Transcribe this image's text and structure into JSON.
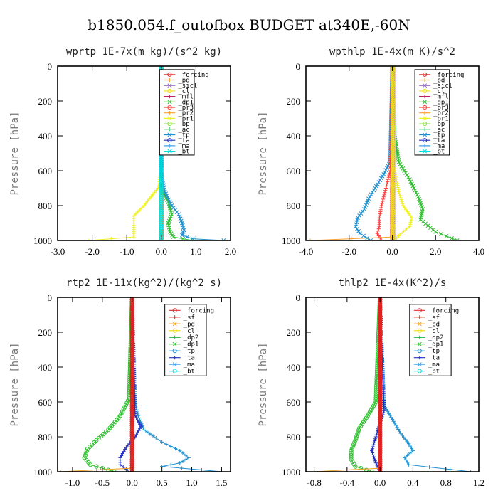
{
  "suptitle": "b1850.054.f_outofbox  BUDGET at340E,-60N",
  "colors": {
    "_forcing": "#e03030",
    "_sf": "#e02020",
    "_pd": "#f0a020",
    "_sicl": "#9a70c0",
    "_cl": "#f0e020",
    "_mfl": "#c02060",
    "_dp1": "#30c030",
    "_dp2": "#20b040",
    "_pr3": "#ff4040",
    "_pr2": "#ffa030",
    "_pr1": "#f0f020",
    "_bp": "#90e040",
    "_ac": "#40d080",
    "_tp": "#2090d0",
    "_ta": "#2030c0",
    "_ma": "#40a0f0",
    "_bt": "#00e0e0"
  },
  "chart_data": [
    {
      "type": "line",
      "title": "wprtp  1E-7x(m kg)/(s^2 kg)",
      "ylabel": "Pressure [hPa]",
      "xlim": [
        -3.0,
        2.0
      ],
      "ylim": [
        1000,
        0
      ],
      "xticks": [
        -3.0,
        -2.0,
        -1.0,
        0.0,
        1.0,
        2.0
      ],
      "xtick_labels": [
        "-3.0",
        "-2.0",
        "-1.0",
        "0.0",
        "1.0",
        "2.0"
      ],
      "yticks": [
        0,
        200,
        400,
        600,
        800,
        1000
      ],
      "legend": [
        "_forcing",
        "_pd",
        "_sicl",
        "_cl",
        "_mfl",
        "_dp1",
        "_pr3",
        "_pr2",
        "_pr1",
        "_bp",
        "_ac",
        "_tp",
        "_ta",
        "_ma",
        "_bt"
      ],
      "legend_frame": [
        0.59,
        0.02,
        0.79,
        0.51
      ],
      "series": [
        {
          "name": "_forcing",
          "marker": "o",
          "p": [
            0,
            1000
          ],
          "x": [
            0,
            0
          ]
        },
        {
          "name": "_pd",
          "marker": "+",
          "p": [
            0,
            1000
          ],
          "x": [
            0,
            0
          ]
        },
        {
          "name": "_pr1",
          "marker": "+",
          "p": [
            0,
            600,
            700,
            800,
            860,
            900,
            950,
            980,
            1000
          ],
          "x": [
            0,
            0,
            -0.1,
            -0.5,
            -0.8,
            -0.8,
            -0.8,
            -0.8,
            -2.1
          ]
        },
        {
          "name": "_dp1",
          "marker": "x",
          "p": [
            0,
            700,
            780,
            850,
            900,
            950,
            980,
            1000
          ],
          "x": [
            0,
            0,
            0.2,
            0.3,
            0.2,
            0.25,
            0.35,
            0.9
          ]
        },
        {
          "name": "_tp",
          "marker": "x",
          "p": [
            0,
            620,
            720,
            800,
            850,
            900,
            940,
            970,
            990,
            1000
          ],
          "x": [
            0,
            0,
            0.1,
            0.3,
            0.5,
            0.6,
            0.65,
            0.6,
            0.9,
            1.8
          ]
        },
        {
          "name": "_bt",
          "marker": "o",
          "p": [
            0,
            1000
          ],
          "x": [
            0,
            0
          ]
        }
      ]
    },
    {
      "type": "line",
      "title": "wpthlp  1E-4x(m K)/s^2",
      "ylabel": "Pressure [hPa]",
      "xlim": [
        -4.0,
        4.0
      ],
      "ylim": [
        1000,
        0
      ],
      "xticks": [
        -4.0,
        -2.0,
        0.0,
        2.0,
        4.0
      ],
      "xtick_labels": [
        "-4.0",
        "-2.0",
        "0.0",
        "2.0",
        "4.0"
      ],
      "yticks": [
        0,
        200,
        400,
        600,
        800,
        1000
      ],
      "legend": [
        "_forcing",
        "_pd",
        "_sicl",
        "_cl",
        "_mfl",
        "_dp1",
        "_pr3",
        "_pr2",
        "_pr1",
        "_bp",
        "_ac",
        "_tp",
        "_ta",
        "_ma",
        "_bt"
      ],
      "legend_frame": [
        0.63,
        0.02,
        0.83,
        0.51
      ],
      "series": [
        {
          "name": "_forcing",
          "marker": "o",
          "p": [
            0,
            1000
          ],
          "x": [
            0,
            0
          ]
        },
        {
          "name": "_dp1",
          "marker": "x",
          "p": [
            0,
            400,
            550,
            650,
            750,
            820,
            880,
            950,
            1000
          ],
          "x": [
            0,
            0.1,
            0.3,
            0.8,
            1.2,
            1.4,
            1.3,
            2.0,
            3.0
          ]
        },
        {
          "name": "_tp",
          "marker": "x",
          "p": [
            0,
            550,
            620,
            700,
            760,
            820,
            870,
            920,
            960,
            1000
          ],
          "x": [
            0,
            -0.1,
            -0.4,
            -0.8,
            -1.1,
            -1.3,
            -1.6,
            -1.7,
            -1.5,
            -1.0
          ]
        },
        {
          "name": "_pr1",
          "marker": "+",
          "p": [
            0,
            600,
            720,
            800,
            870,
            920,
            960,
            1000
          ],
          "x": [
            0,
            0.1,
            0.3,
            0.5,
            0.9,
            0.8,
            0.4,
            0.1
          ]
        },
        {
          "name": "_pr3",
          "marker": "+",
          "p": [
            0,
            600,
            700,
            800,
            870,
            920,
            960,
            1000
          ],
          "x": [
            0,
            -0.1,
            -0.3,
            -0.5,
            -0.6,
            -0.6,
            -0.7,
            -0.5
          ]
        },
        {
          "name": "_pr2",
          "marker": "+",
          "p": [
            0,
            980,
            1000
          ],
          "x": [
            0,
            0,
            -3.8
          ]
        },
        {
          "name": "_sicl",
          "marker": "+",
          "p": [
            0,
            1000
          ],
          "x": [
            0.1,
            0.1
          ]
        },
        {
          "name": "_cl",
          "marker": "o",
          "p": [
            0,
            1000
          ],
          "x": [
            0.05,
            0.05
          ]
        }
      ]
    },
    {
      "type": "line",
      "title": "rtp2  1E-11x(kg^2)/(kg^2 s)",
      "ylabel": "Pressure [hPa]",
      "xlim": [
        -1.25,
        1.65
      ],
      "ylim": [
        1000,
        0
      ],
      "xticks": [
        -1.0,
        -0.5,
        0.0,
        0.5,
        1.0,
        1.5
      ],
      "xtick_labels": [
        "-1.0",
        "-0.5",
        "0.0",
        "0.5",
        "1.0",
        "1.5"
      ],
      "yticks": [
        0,
        200,
        400,
        600,
        800,
        1000
      ],
      "legend": [
        "_forcing",
        "_sf",
        "_pd",
        "_cl",
        "_dp2",
        "_dp1",
        "_tp",
        "_ta",
        "_ma",
        "_bt"
      ],
      "legend_frame": [
        0.62,
        0.04,
        0.86,
        0.45
      ],
      "series": [
        {
          "name": "_dp1",
          "marker": "o",
          "p": [
            0,
            580,
            680,
            760,
            820,
            870,
            920,
            960,
            980,
            1000
          ],
          "x": [
            0,
            -0.05,
            -0.2,
            -0.4,
            -0.6,
            -0.75,
            -0.8,
            -0.7,
            -0.5,
            -0.3
          ]
        },
        {
          "name": "_tp",
          "marker": "+",
          "p": [
            0,
            600,
            680,
            760,
            830,
            880,
            920,
            950,
            970,
            1000
          ],
          "x": [
            0,
            0.05,
            0.1,
            0.2,
            0.5,
            0.8,
            0.95,
            0.8,
            0.5,
            1.5
          ]
        },
        {
          "name": "_ta",
          "marker": "+",
          "p": [
            0,
            680,
            740,
            800,
            860,
            920,
            960,
            1000
          ],
          "x": [
            0,
            0.05,
            0.15,
            0.05,
            -0.1,
            -0.2,
            -0.2,
            -0.05
          ]
        },
        {
          "name": "_pd",
          "marker": "+",
          "p": [
            0,
            980,
            1000
          ],
          "x": [
            0,
            0,
            -1.2
          ]
        },
        {
          "name": "_forcing",
          "marker": "o",
          "p": [
            0,
            1000
          ],
          "x": [
            0,
            0
          ]
        },
        {
          "name": "_sf",
          "marker": "v",
          "p": [
            0,
            1000
          ],
          "x": [
            0,
            0
          ]
        }
      ]
    },
    {
      "type": "line",
      "title": "thlp2  1E-4x(K^2)/s",
      "ylabel": "Pressure [hPa]",
      "xlim": [
        -0.9,
        1.2
      ],
      "ylim": [
        1000,
        0
      ],
      "xticks": [
        -0.8,
        -0.4,
        0.0,
        0.4,
        0.8,
        1.2
      ],
      "xtick_labels": [
        "-0.8",
        "-0.4",
        "0.0",
        "0.4",
        "0.8",
        "1.2"
      ],
      "yticks": [
        0,
        200,
        400,
        600,
        800,
        1000
      ],
      "legend": [
        "_forcing",
        "_sf",
        "_pd",
        "_cl",
        "_dp2",
        "_dp1",
        "_tp",
        "_ta",
        "_ma",
        "_bt"
      ],
      "legend_frame": [
        0.6,
        0.04,
        0.84,
        0.45
      ],
      "series": [
        {
          "name": "_dp1",
          "marker": "o",
          "p": [
            0,
            600,
            680,
            750,
            820,
            880,
            930,
            970,
            1000
          ],
          "x": [
            0,
            -0.05,
            -0.15,
            -0.25,
            -0.3,
            -0.35,
            -0.35,
            -0.3,
            -0.1
          ]
        },
        {
          "name": "_tp",
          "marker": "+",
          "p": [
            0,
            620,
            700,
            780,
            840,
            880,
            920,
            960,
            1000
          ],
          "x": [
            0,
            0.05,
            0.15,
            0.25,
            0.35,
            0.4,
            0.3,
            0.35,
            1.1
          ]
        },
        {
          "name": "_ta",
          "marker": "+",
          "p": [
            0,
            650,
            720,
            800,
            880,
            950,
            1000
          ],
          "x": [
            0,
            0.05,
            0.0,
            -0.05,
            -0.1,
            -0.05,
            0
          ]
        },
        {
          "name": "_pd",
          "marker": "+",
          "p": [
            0,
            980,
            1000
          ],
          "x": [
            0,
            0,
            -0.8
          ]
        },
        {
          "name": "_forcing",
          "marker": "o",
          "p": [
            0,
            1000
          ],
          "x": [
            0,
            0
          ]
        },
        {
          "name": "_sf",
          "marker": "v",
          "p": [
            0,
            1000
          ],
          "x": [
            0,
            0
          ]
        }
      ]
    }
  ]
}
